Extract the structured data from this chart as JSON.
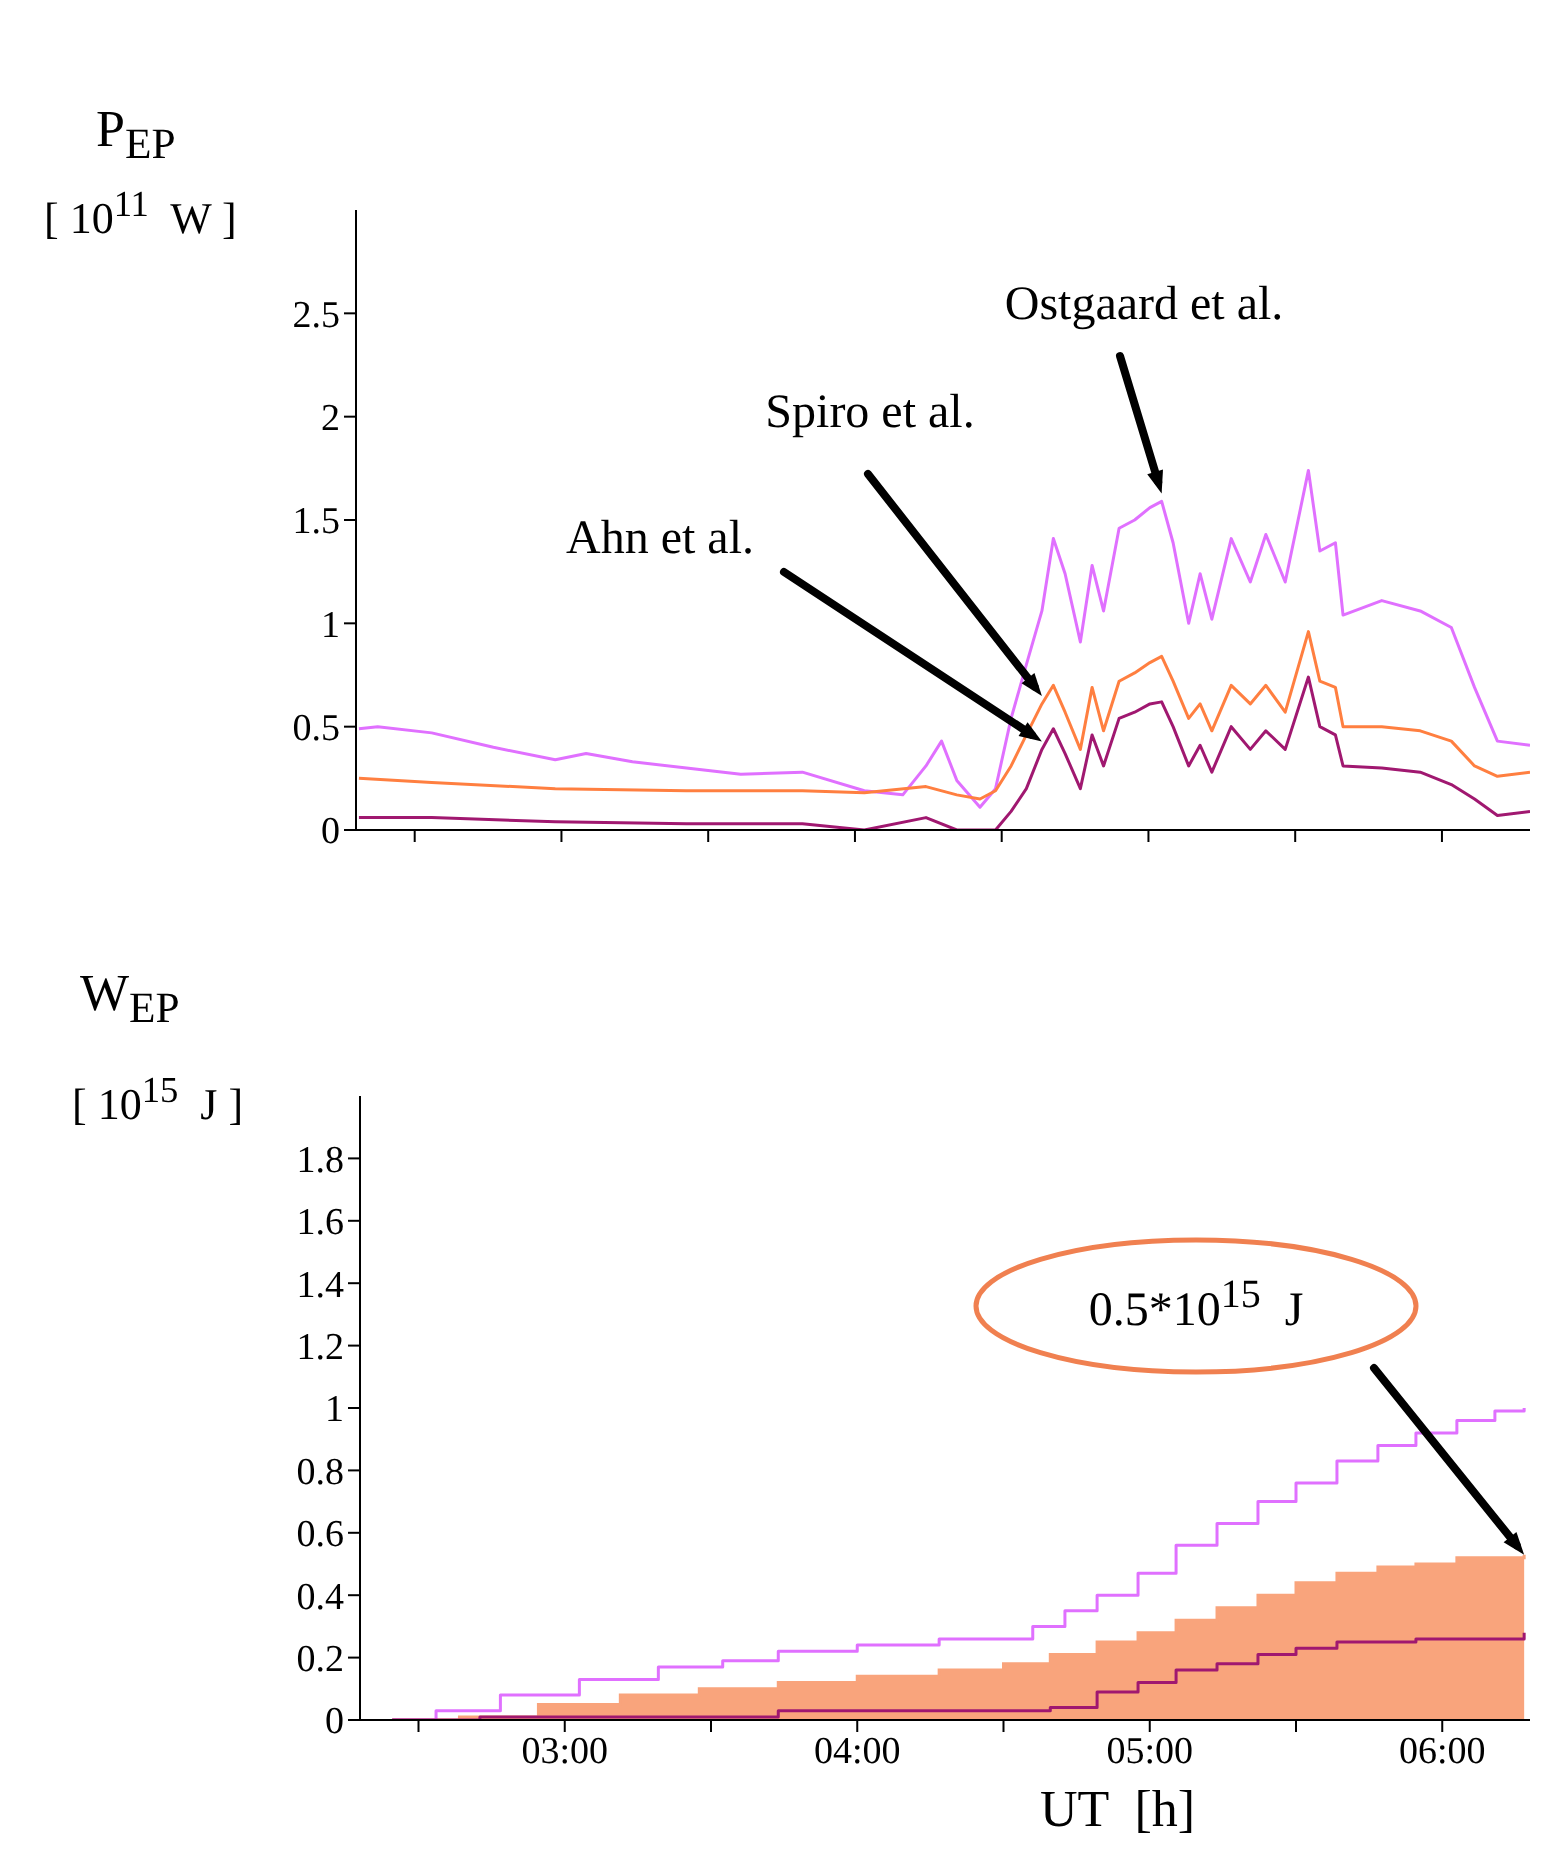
{
  "chart_data": [
    {
      "type": "line",
      "ylabel": "P$_{EP}$\n[ 10$^{11}$  W ]",
      "xlim": [
        2.3,
        6.3
      ],
      "xticks": [
        {
          "value": 2.5,
          "label": null
        },
        {
          "value": 3,
          "label": null
        },
        {
          "value": 3.5,
          "label": null
        },
        {
          "value": 4,
          "label": null
        },
        {
          "value": 4.5,
          "label": null
        },
        {
          "value": 5,
          "label": null
        },
        {
          "value": 5.5,
          "label": null
        },
        {
          "value": 6,
          "label": null
        }
      ],
      "ylim": [
        0,
        3
      ],
      "yticks": [
        0,
        0.5,
        1,
        1.5,
        2,
        2.5
      ],
      "tick_labels": "y",
      "series": [
        {
          "name": "Ostgaard et al.",
          "color": "#e070ff",
          "x": [
            2.31,
            2.374,
            2.558,
            2.768,
            2.979,
            3.084,
            3.242,
            3.426,
            3.611,
            3.821,
            4.032,
            4.163,
            4.242,
            4.295,
            4.347,
            4.426,
            4.479,
            4.532,
            4.584,
            4.637,
            4.676,
            4.716,
            4.768,
            4.808,
            4.847,
            4.9,
            4.953,
            5.005,
            5.045,
            5.084,
            5.137,
            5.176,
            5.216,
            5.282,
            5.347,
            5.4,
            5.466,
            5.545,
            5.584,
            5.637,
            5.663,
            5.795,
            5.926,
            6.032,
            6.111,
            6.189,
            6.3
          ],
          "values": [
            0.49,
            0.5,
            0.47,
            0.4,
            0.34,
            0.37,
            0.33,
            0.3,
            0.27,
            0.28,
            0.19,
            0.17,
            0.31,
            0.43,
            0.24,
            0.11,
            0.2,
            0.54,
            0.8,
            1.06,
            1.41,
            1.24,
            0.91,
            1.28,
            1.06,
            1.46,
            1.5,
            1.56,
            1.59,
            1.39,
            1.0,
            1.24,
            1.02,
            1.41,
            1.2,
            1.43,
            1.2,
            1.74,
            1.35,
            1.39,
            1.04,
            1.11,
            1.06,
            0.98,
            0.69,
            0.43,
            0.41
          ]
        },
        {
          "name": "Spiro et al.",
          "color": "#ff7f40",
          "x": [
            2.31,
            2.558,
            2.979,
            3.426,
            3.821,
            4.032,
            4.242,
            4.347,
            4.426,
            4.479,
            4.532,
            4.584,
            4.637,
            4.676,
            4.716,
            4.768,
            4.808,
            4.847,
            4.9,
            4.953,
            5.005,
            5.045,
            5.084,
            5.137,
            5.176,
            5.216,
            5.282,
            5.347,
            5.4,
            5.466,
            5.545,
            5.584,
            5.637,
            5.663,
            5.795,
            5.926,
            6.032,
            6.111,
            6.189,
            6.3
          ],
          "values": [
            0.25,
            0.23,
            0.2,
            0.19,
            0.19,
            0.18,
            0.21,
            0.17,
            0.15,
            0.19,
            0.31,
            0.46,
            0.61,
            0.7,
            0.57,
            0.39,
            0.69,
            0.48,
            0.72,
            0.76,
            0.81,
            0.84,
            0.72,
            0.54,
            0.61,
            0.48,
            0.7,
            0.61,
            0.7,
            0.57,
            0.96,
            0.72,
            0.69,
            0.5,
            0.5,
            0.48,
            0.43,
            0.31,
            0.26,
            0.28
          ]
        },
        {
          "name": "Ahn et al.",
          "color": "#a01870",
          "x": [
            2.31,
            2.558,
            2.979,
            3.426,
            3.821,
            4.032,
            4.242,
            4.347,
            4.479,
            4.532,
            4.584,
            4.637,
            4.676,
            4.716,
            4.768,
            4.808,
            4.847,
            4.9,
            4.953,
            5.005,
            5.045,
            5.084,
            5.137,
            5.176,
            5.216,
            5.282,
            5.347,
            5.4,
            5.466,
            5.545,
            5.584,
            5.637,
            5.663,
            5.795,
            5.926,
            6.032,
            6.111,
            6.189,
            6.3
          ],
          "values": [
            0.06,
            0.06,
            0.04,
            0.03,
            0.03,
            0.0,
            0.06,
            0.0,
            0.0,
            0.09,
            0.2,
            0.39,
            0.49,
            0.37,
            0.2,
            0.46,
            0.31,
            0.54,
            0.57,
            0.61,
            0.62,
            0.5,
            0.31,
            0.41,
            0.28,
            0.5,
            0.39,
            0.48,
            0.39,
            0.74,
            0.5,
            0.46,
            0.31,
            0.3,
            0.28,
            0.22,
            0.15,
            0.07,
            0.09
          ]
        }
      ]
    },
    {
      "type": "step",
      "xlabel": "UT  [h]",
      "ylabel": "W$_{EP}$\n[ 10$^{15}$  J ]",
      "xlim": [
        2.3,
        6.3
      ],
      "xticks": [
        {
          "value": 2.5,
          "label": null
        },
        {
          "value": 3,
          "label": "03:00"
        },
        {
          "value": 3.5,
          "label": null
        },
        {
          "value": 4,
          "label": "04:00"
        },
        {
          "value": 4.5,
          "label": null
        },
        {
          "value": 5,
          "label": "05:00"
        },
        {
          "value": 5.5,
          "label": null
        },
        {
          "value": 6,
          "label": "06:00"
        }
      ],
      "ylim": [
        0,
        2
      ],
      "yticks": [
        0,
        0.2,
        0.4,
        0.6,
        0.8,
        1,
        1.2,
        1.4,
        1.6,
        1.8
      ],
      "annotations": [
        "0.5*10$^{15}$  J"
      ],
      "series": [
        {
          "type": "area",
          "color": "#f9a47c",
          "x": [
            2.41,
            2.64,
            2.91,
            3.19,
            3.46,
            3.73,
            4.0,
            4.28,
            4.5,
            4.66,
            4.82,
            4.96,
            5.09,
            5.23,
            5.37,
            5.5,
            5.64,
            5.78,
            5.91,
            6.05,
            6.28
          ],
          "values": [
            0,
            0.01,
            0.05,
            0.08,
            0.1,
            0.12,
            0.14,
            0.16,
            0.18,
            0.21,
            0.25,
            0.28,
            0.32,
            0.36,
            0.4,
            0.44,
            0.47,
            0.49,
            0.5,
            0.52,
            0.53
          ]
        },
        {
          "color": "#e070ff",
          "x": [
            2.41,
            2.56,
            2.78,
            3.05,
            3.32,
            3.54,
            3.73,
            4.0,
            4.28,
            4.52,
            4.6,
            4.71,
            4.82,
            4.96,
            5.09,
            5.23,
            5.37,
            5.5,
            5.64,
            5.78,
            5.91,
            6.05,
            6.18,
            6.28
          ],
          "values": [
            0,
            0.03,
            0.08,
            0.13,
            0.17,
            0.19,
            0.22,
            0.24,
            0.26,
            0.26,
            0.3,
            0.35,
            0.4,
            0.47,
            0.56,
            0.63,
            0.7,
            0.76,
            0.83,
            0.88,
            0.92,
            0.96,
            0.99,
            1.0
          ]
        },
        {
          "color": "#a01870",
          "x": [
            2.41,
            2.71,
            3.73,
            4.66,
            4.82,
            4.96,
            5.09,
            5.23,
            5.37,
            5.5,
            5.64,
            5.91,
            6.28
          ],
          "values": [
            0,
            0.01,
            0.03,
            0.04,
            0.09,
            0.12,
            0.16,
            0.18,
            0.21,
            0.23,
            0.25,
            0.26,
            0.28
          ]
        }
      ]
    }
  ]
}
